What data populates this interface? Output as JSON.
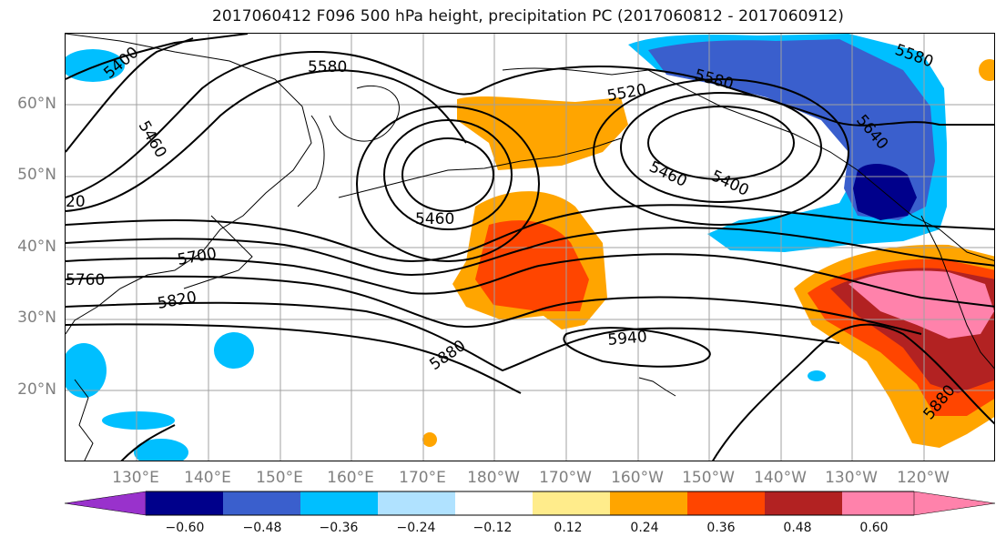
{
  "title": "2017060412 F096 500 hPa height, precipitation PC (2017060812 - 2017060912)",
  "latitude_labels": [
    "60°N",
    "50°N",
    "40°N",
    "30°N",
    "20°N"
  ],
  "longitude_labels": [
    "130°E",
    "140°E",
    "150°E",
    "160°E",
    "170°E",
    "180°W",
    "170°W",
    "160°W",
    "150°W",
    "140°W",
    "130°W",
    "120°W"
  ],
  "contour_labels": [
    "5400",
    "5460",
    "5580",
    "5520",
    "5580",
    "5640",
    "5580",
    "5460",
    "5400",
    "5460",
    "20",
    "5700",
    "5760",
    "5820",
    "5880",
    "5940",
    "5880"
  ],
  "colorbar": {
    "ticks": [
      "−0.60",
      "−0.48",
      "−0.36",
      "−0.24",
      "−0.12",
      "0.12",
      "0.24",
      "0.36",
      "0.48",
      "0.60"
    ],
    "colors": [
      "#9932cc",
      "#00008b",
      "#3a5fcd",
      "#00bfff",
      "#b0e2ff",
      "#ffffff",
      "#ffec8b",
      "#ffa500",
      "#ff4500",
      "#b22222",
      "#ff82ab"
    ]
  },
  "colors": {
    "land_outline": "#000000",
    "contour": "#000000",
    "grid": "#a0a0a0",
    "axis_labels": "#808080"
  }
}
